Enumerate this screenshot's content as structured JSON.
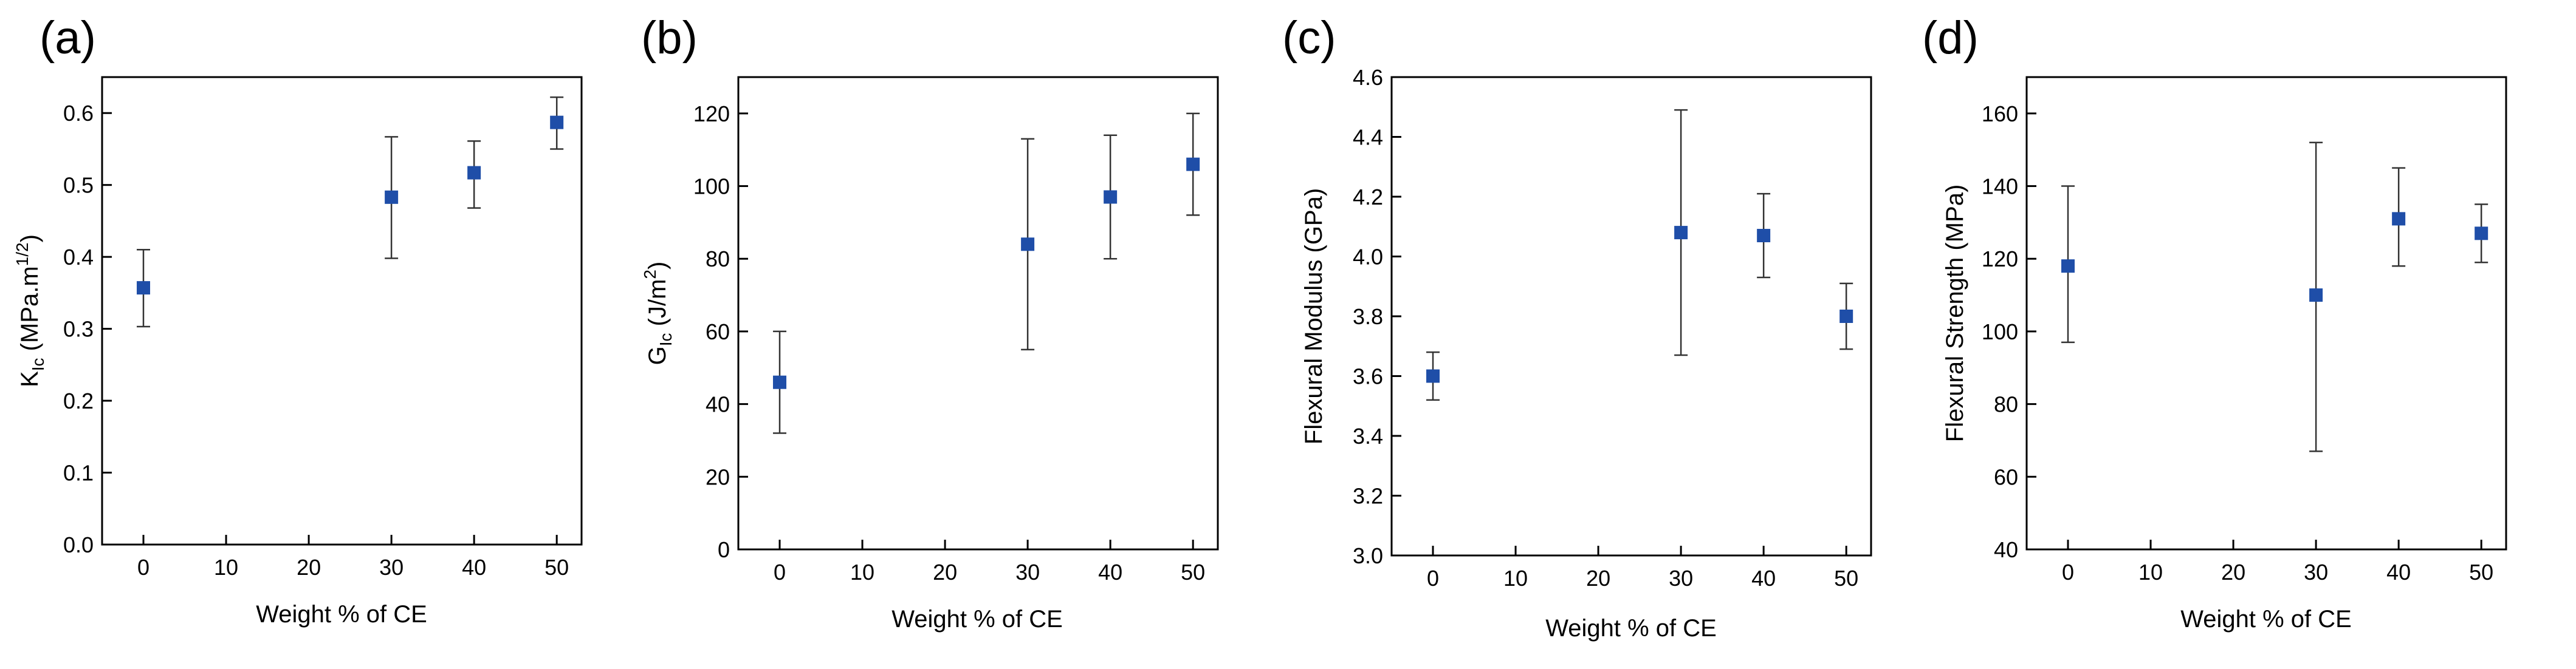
{
  "figure": {
    "x_label": "Weight % of CE"
  },
  "colors": {
    "marker": "#1f4ea8",
    "axis": "#000000",
    "errorbar": "#333333"
  },
  "chart_data": [
    {
      "panel_label": "(a)",
      "type": "scatter",
      "error_bars": true,
      "xlabel": "Weight % of CE",
      "ylabel_main": "K",
      "ylabel_sub": "Ic",
      "ylabel_rest": " (MPa.m",
      "ylabel_sup": "1/2",
      "ylabel_end": ")",
      "xlim": [
        -5,
        53
      ],
      "ylim": [
        0.0,
        0.65
      ],
      "xticks": [
        0,
        10,
        20,
        30,
        40,
        50
      ],
      "xtick_labels": [
        "0",
        "10",
        "20",
        "30",
        "40",
        "50"
      ],
      "yticks": [
        0.0,
        0.1,
        0.2,
        0.3,
        0.4,
        0.5,
        0.6
      ],
      "ytick_labels": [
        "0.0",
        "0.1",
        "0.2",
        "0.3",
        "0.4",
        "0.5",
        "0.6"
      ],
      "points": [
        {
          "x": 0,
          "y": 0.357,
          "lo": 0.303,
          "hi": 0.41
        },
        {
          "x": 30,
          "y": 0.483,
          "lo": 0.398,
          "hi": 0.567
        },
        {
          "x": 40,
          "y": 0.517,
          "lo": 0.468,
          "hi": 0.561
        },
        {
          "x": 50,
          "y": 0.587,
          "lo": 0.55,
          "hi": 0.622
        }
      ]
    },
    {
      "panel_label": "(b)",
      "type": "scatter",
      "error_bars": true,
      "xlabel": "Weight % of CE",
      "ylabel_main": "G",
      "ylabel_sub": "Ic",
      "ylabel_rest": " (J/m",
      "ylabel_sup": "2",
      "ylabel_end": ")",
      "xlim": [
        -5,
        53
      ],
      "ylim": [
        0,
        130
      ],
      "xticks": [
        0,
        10,
        20,
        30,
        40,
        50
      ],
      "xtick_labels": [
        "0",
        "10",
        "20",
        "30",
        "40",
        "50"
      ],
      "yticks": [
        0,
        20,
        40,
        60,
        80,
        100,
        120
      ],
      "ytick_labels": [
        "0",
        "20",
        "40",
        "60",
        "80",
        "100",
        "120"
      ],
      "points": [
        {
          "x": 0,
          "y": 46,
          "lo": 32,
          "hi": 60
        },
        {
          "x": 30,
          "y": 84,
          "lo": 55,
          "hi": 113
        },
        {
          "x": 40,
          "y": 97,
          "lo": 80,
          "hi": 114
        },
        {
          "x": 50,
          "y": 106,
          "lo": 92,
          "hi": 120
        }
      ]
    },
    {
      "panel_label": "(c)",
      "type": "scatter",
      "error_bars": true,
      "xlabel": "Weight % of CE",
      "ylabel_main": "Flexural Modulus (GPa)",
      "xlim": [
        -5,
        53
      ],
      "ylim": [
        3.0,
        4.6
      ],
      "xticks": [
        0,
        10,
        20,
        30,
        40,
        50
      ],
      "xtick_labels": [
        "0",
        "10",
        "20",
        "30",
        "40",
        "50"
      ],
      "yticks": [
        3.0,
        3.2,
        3.4,
        3.6,
        3.8,
        4.0,
        4.2,
        4.4,
        4.6
      ],
      "ytick_labels": [
        "3.0",
        "3.2",
        "3.4",
        "3.6",
        "3.8",
        "4.0",
        "4.2",
        "4.4",
        "4.6"
      ],
      "points": [
        {
          "x": 0,
          "y": 3.6,
          "lo": 3.52,
          "hi": 3.68
        },
        {
          "x": 30,
          "y": 4.08,
          "lo": 3.67,
          "hi": 4.49
        },
        {
          "x": 40,
          "y": 4.07,
          "lo": 3.93,
          "hi": 4.21
        },
        {
          "x": 50,
          "y": 3.8,
          "lo": 3.69,
          "hi": 3.91
        }
      ]
    },
    {
      "panel_label": "(d)",
      "type": "scatter",
      "error_bars": true,
      "xlabel": "Weight % of CE",
      "ylabel_main": "Flexural Strength (MPa)",
      "xlim": [
        -5,
        53
      ],
      "ylim": [
        40,
        170
      ],
      "xticks": [
        0,
        10,
        20,
        30,
        40,
        50
      ],
      "xtick_labels": [
        "0",
        "10",
        "20",
        "30",
        "40",
        "50"
      ],
      "yticks": [
        40,
        60,
        80,
        100,
        120,
        140,
        160
      ],
      "ytick_labels": [
        "40",
        "60",
        "80",
        "100",
        "120",
        "140",
        "160"
      ],
      "points": [
        {
          "x": 0,
          "y": 118,
          "lo": 97,
          "hi": 140
        },
        {
          "x": 30,
          "y": 110,
          "lo": 67,
          "hi": 152
        },
        {
          "x": 40,
          "y": 131,
          "lo": 118,
          "hi": 145
        },
        {
          "x": 50,
          "y": 127,
          "lo": 119,
          "hi": 135
        }
      ]
    }
  ]
}
